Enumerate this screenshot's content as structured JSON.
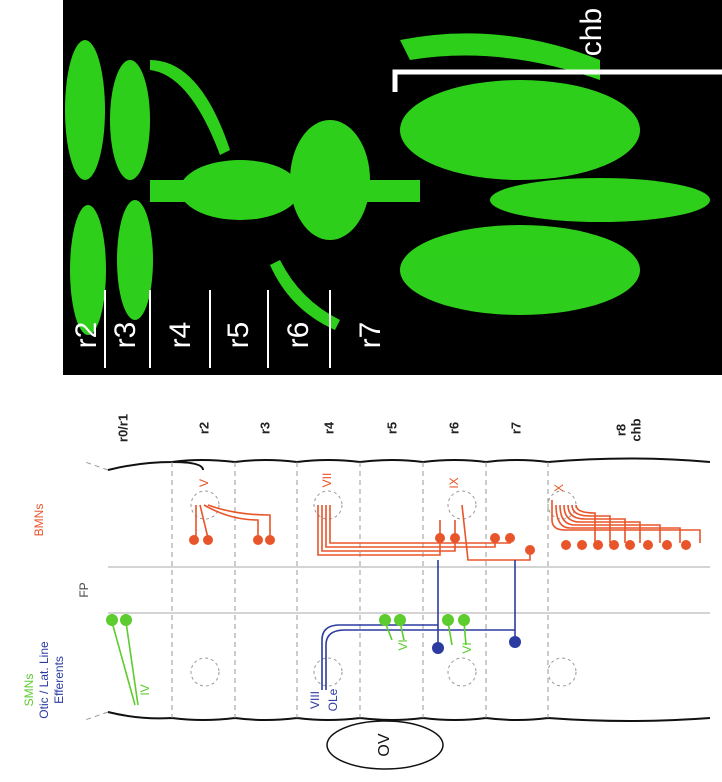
{
  "image": {
    "chb": "chb",
    "rhombomeres": [
      "r2",
      "r3",
      "r4",
      "r5",
      "r6",
      "r7"
    ]
  },
  "diagram": {
    "columns": [
      "r0/r1",
      "r2",
      "r3",
      "r4",
      "r5",
      "r6",
      "r7",
      "r8"
    ],
    "column_sublabel": "chb",
    "rows": {
      "bmns": "BMNs",
      "fp": "FP",
      "smns": "SMNs",
      "otic_line1": "Otic / Lat. Line",
      "otic_line2": "Efferents"
    },
    "nuclei": [
      "V",
      "VII",
      "IX",
      "X",
      "VI",
      "VI",
      "IV",
      "VIII",
      "OLe"
    ],
    "ov": "OV"
  }
}
